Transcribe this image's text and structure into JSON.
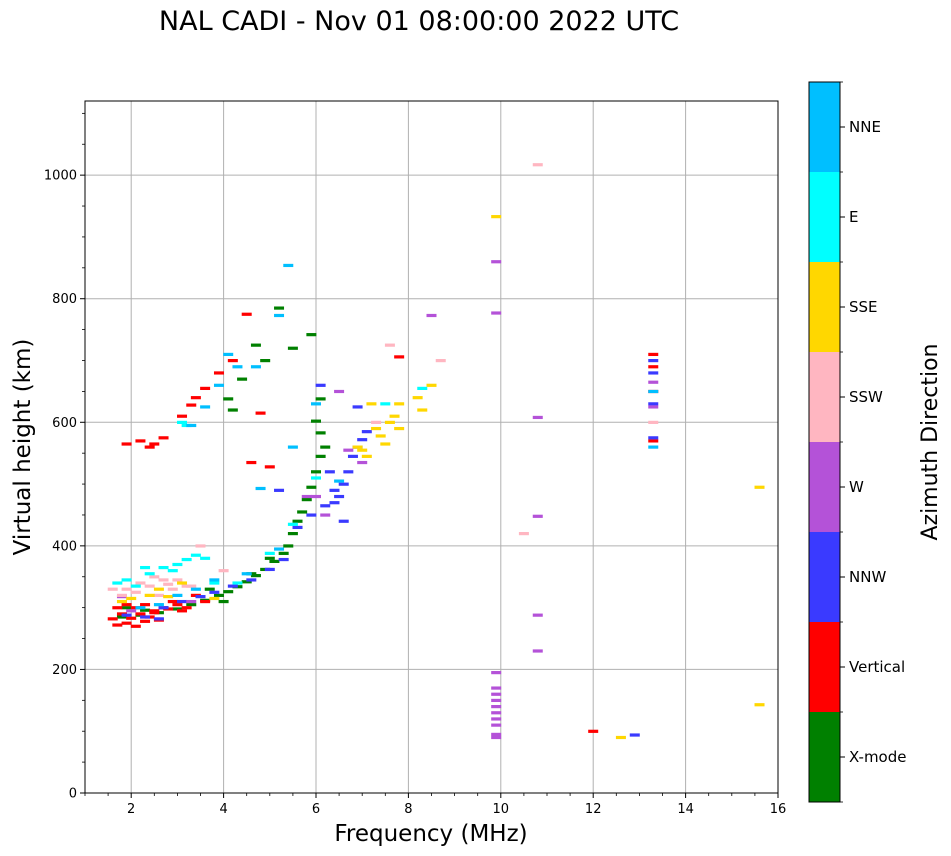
{
  "chart_data": {
    "type": "scatter",
    "title": "NAL CADI - Nov 01 08:00:00 2022 UTC",
    "xlabel": "Frequency (MHz)",
    "ylabel": "Virtual height (km)",
    "xlim": [
      1,
      16
    ],
    "ylim": [
      0,
      1120
    ],
    "xticks": [
      2,
      4,
      6,
      8,
      10,
      12,
      14,
      16
    ],
    "xtick_labels": [
      "2",
      "4",
      "6",
      "8",
      "10",
      "12",
      "14",
      "16"
    ],
    "yticks": [
      0,
      200,
      400,
      600,
      800,
      1000
    ],
    "ytick_labels": [
      "0",
      "200",
      "400",
      "600",
      "800",
      "1000"
    ],
    "grid": true,
    "colorbar": {
      "label": "Azimuth Direction",
      "categories": [
        "X-mode",
        "Vertical",
        "NNW",
        "W",
        "SSW",
        "SSE",
        "E",
        "NNE"
      ],
      "colors": [
        "#008000",
        "#ff0000",
        "#3a3aff",
        "#b452d8",
        "#ffb6c1",
        "#ffd700",
        "#00ffff",
        "#00bfff"
      ]
    },
    "series": [
      {
        "name": "X-mode",
        "points": [
          [
            1.8,
            285
          ],
          [
            2.2,
            288
          ],
          [
            2.6,
            292
          ],
          [
            3.0,
            298
          ],
          [
            3.3,
            305
          ],
          [
            3.6,
            312
          ],
          [
            3.9,
            320
          ],
          [
            4.1,
            326
          ],
          [
            4.3,
            334
          ],
          [
            4.5,
            342
          ],
          [
            4.7,
            352
          ],
          [
            4.9,
            362
          ],
          [
            5.1,
            375
          ],
          [
            5.3,
            388
          ],
          [
            5.4,
            400
          ],
          [
            5.5,
            420
          ],
          [
            5.6,
            440
          ],
          [
            5.7,
            455
          ],
          [
            5.8,
            475
          ],
          [
            5.9,
            495
          ],
          [
            6.0,
            520
          ],
          [
            6.1,
            545
          ],
          [
            6.2,
            560
          ],
          [
            6.1,
            583
          ],
          [
            6.0,
            602
          ],
          [
            6.1,
            638
          ],
          [
            5.9,
            742
          ],
          [
            5.5,
            720
          ],
          [
            5.2,
            785
          ],
          [
            4.7,
            725
          ],
          [
            4.4,
            670
          ],
          [
            4.1,
            638
          ],
          [
            2.3,
            296
          ],
          [
            1.9,
            300
          ],
          [
            4.6,
            355
          ],
          [
            3.7,
            330
          ],
          [
            5.0,
            380
          ],
          [
            4.2,
            620
          ],
          [
            4.9,
            700
          ],
          [
            4.0,
            310
          ]
        ]
      },
      {
        "name": "Vertical",
        "points": [
          [
            1.6,
            282
          ],
          [
            1.7,
            272
          ],
          [
            1.8,
            290
          ],
          [
            1.9,
            275
          ],
          [
            2.0,
            283
          ],
          [
            2.1,
            270
          ],
          [
            2.2,
            290
          ],
          [
            2.3,
            278
          ],
          [
            2.4,
            285
          ],
          [
            2.5,
            295
          ],
          [
            2.6,
            280
          ],
          [
            2.8,
            298
          ],
          [
            3.0,
            305
          ],
          [
            3.2,
            300
          ],
          [
            3.4,
            320
          ],
          [
            3.6,
            310
          ],
          [
            1.7,
            300
          ],
          [
            1.9,
            305
          ],
          [
            2.1,
            300
          ],
          [
            2.3,
            305
          ],
          [
            2.5,
            292
          ],
          [
            2.7,
            300
          ],
          [
            2.9,
            310
          ],
          [
            3.1,
            295
          ],
          [
            3.4,
            640
          ],
          [
            3.6,
            655
          ],
          [
            3.9,
            680
          ],
          [
            3.3,
            628
          ],
          [
            3.1,
            610
          ],
          [
            2.7,
            575
          ],
          [
            2.5,
            565
          ],
          [
            2.2,
            570
          ],
          [
            1.9,
            565
          ],
          [
            4.2,
            700
          ],
          [
            4.5,
            775
          ],
          [
            4.8,
            615
          ],
          [
            5.0,
            528
          ],
          [
            4.6,
            535
          ],
          [
            7.8,
            706
          ],
          [
            12.0,
            100
          ],
          [
            13.3,
            570
          ],
          [
            13.3,
            650
          ],
          [
            13.3,
            690
          ],
          [
            13.3,
            710
          ],
          [
            2.4,
            560
          ]
        ]
      },
      {
        "name": "NNW",
        "points": [
          [
            1.9,
            288
          ],
          [
            2.3,
            285
          ],
          [
            2.7,
            300
          ],
          [
            3.1,
            310
          ],
          [
            3.5,
            318
          ],
          [
            3.8,
            325
          ],
          [
            4.2,
            335
          ],
          [
            4.6,
            345
          ],
          [
            5.0,
            362
          ],
          [
            5.3,
            378
          ],
          [
            5.6,
            430
          ],
          [
            5.9,
            450
          ],
          [
            6.2,
            465
          ],
          [
            6.4,
            470
          ],
          [
            6.5,
            480
          ],
          [
            6.6,
            500
          ],
          [
            6.7,
            520
          ],
          [
            6.8,
            545
          ],
          [
            6.9,
            560
          ],
          [
            7.0,
            572
          ],
          [
            7.1,
            585
          ],
          [
            6.9,
            625
          ],
          [
            6.4,
            490
          ],
          [
            6.6,
            440
          ],
          [
            6.3,
            520
          ],
          [
            6.1,
            660
          ],
          [
            5.2,
            490
          ],
          [
            12.9,
            94
          ],
          [
            13.3,
            575
          ],
          [
            13.3,
            630
          ],
          [
            13.3,
            680
          ],
          [
            13.3,
            700
          ],
          [
            2.6,
            282
          ]
        ]
      },
      {
        "name": "W",
        "points": [
          [
            9.9,
            195
          ],
          [
            9.9,
            170
          ],
          [
            9.9,
            160
          ],
          [
            9.9,
            150
          ],
          [
            9.9,
            140
          ],
          [
            9.9,
            130
          ],
          [
            9.9,
            120
          ],
          [
            9.9,
            110
          ],
          [
            9.9,
            95
          ],
          [
            9.9,
            90
          ],
          [
            9.9,
            860
          ],
          [
            9.9,
            777
          ],
          [
            10.8,
            608
          ],
          [
            10.8,
            448
          ],
          [
            10.8,
            288
          ],
          [
            10.8,
            230
          ],
          [
            8.5,
            773
          ],
          [
            6.5,
            650
          ],
          [
            6.2,
            450
          ],
          [
            7.0,
            535
          ],
          [
            6.7,
            555
          ],
          [
            5.8,
            480
          ],
          [
            1.8,
            318
          ],
          [
            3.3,
            310
          ],
          [
            2.0,
            295
          ],
          [
            13.3,
            625
          ],
          [
            13.3,
            665
          ],
          [
            6.0,
            480
          ]
        ]
      },
      {
        "name": "SSW",
        "points": [
          [
            1.9,
            330
          ],
          [
            2.2,
            340
          ],
          [
            2.5,
            350
          ],
          [
            2.8,
            338
          ],
          [
            3.0,
            345
          ],
          [
            3.2,
            335
          ],
          [
            1.8,
            320
          ],
          [
            2.1,
            325
          ],
          [
            2.4,
            335
          ],
          [
            2.6,
            320
          ],
          [
            2.9,
            330
          ],
          [
            3.5,
            400
          ],
          [
            8.7,
            700
          ],
          [
            10.5,
            420
          ],
          [
            10.8,
            1017
          ],
          [
            7.6,
            725
          ],
          [
            7.3,
            600
          ],
          [
            1.6,
            330
          ],
          [
            4.0,
            360
          ],
          [
            13.3,
            600
          ],
          [
            2.7,
            345
          ],
          [
            3.3,
            335
          ]
        ]
      },
      {
        "name": "SSE",
        "points": [
          [
            7.0,
            555
          ],
          [
            7.1,
            545
          ],
          [
            7.3,
            590
          ],
          [
            7.4,
            578
          ],
          [
            7.5,
            565
          ],
          [
            7.6,
            600
          ],
          [
            7.7,
            610
          ],
          [
            7.8,
            630
          ],
          [
            8.2,
            640
          ],
          [
            8.3,
            620
          ],
          [
            8.5,
            660
          ],
          [
            9.9,
            933
          ],
          [
            12.6,
            90
          ],
          [
            15.6,
            143
          ],
          [
            15.6,
            495
          ],
          [
            7.2,
            630
          ],
          [
            6.9,
            560
          ],
          [
            2.0,
            315
          ],
          [
            2.4,
            320
          ],
          [
            2.6,
            330
          ],
          [
            3.1,
            340
          ],
          [
            1.8,
            310
          ],
          [
            2.8,
            318
          ],
          [
            3.8,
            315
          ],
          [
            7.8,
            590
          ]
        ]
      },
      {
        "name": "E",
        "points": [
          [
            1.9,
            345
          ],
          [
            2.1,
            335
          ],
          [
            2.4,
            355
          ],
          [
            2.7,
            365
          ],
          [
            3.0,
            370
          ],
          [
            3.2,
            378
          ],
          [
            3.4,
            385
          ],
          [
            3.6,
            380
          ],
          [
            2.3,
            365
          ],
          [
            2.9,
            360
          ],
          [
            1.7,
            340
          ],
          [
            3.1,
            600
          ],
          [
            3.2,
            595
          ],
          [
            5.0,
            388
          ],
          [
            5.5,
            435
          ],
          [
            6.0,
            510
          ],
          [
            7.5,
            630
          ],
          [
            8.3,
            655
          ],
          [
            3.8,
            340
          ],
          [
            4.3,
            340
          ]
        ]
      },
      {
        "name": "NNE",
        "points": [
          [
            3.3,
            595
          ],
          [
            3.6,
            625
          ],
          [
            3.9,
            660
          ],
          [
            4.1,
            710
          ],
          [
            4.3,
            690
          ],
          [
            4.7,
            690
          ],
          [
            5.2,
            773
          ],
          [
            5.4,
            854
          ],
          [
            6.0,
            630
          ],
          [
            4.8,
            493
          ],
          [
            2.6,
            305
          ],
          [
            3.0,
            320
          ],
          [
            3.4,
            330
          ],
          [
            3.8,
            345
          ],
          [
            4.5,
            355
          ],
          [
            5.2,
            395
          ],
          [
            2.2,
            300
          ],
          [
            6.5,
            505
          ],
          [
            13.3,
            560
          ],
          [
            13.3,
            650
          ],
          [
            5.5,
            560
          ]
        ]
      }
    ]
  }
}
